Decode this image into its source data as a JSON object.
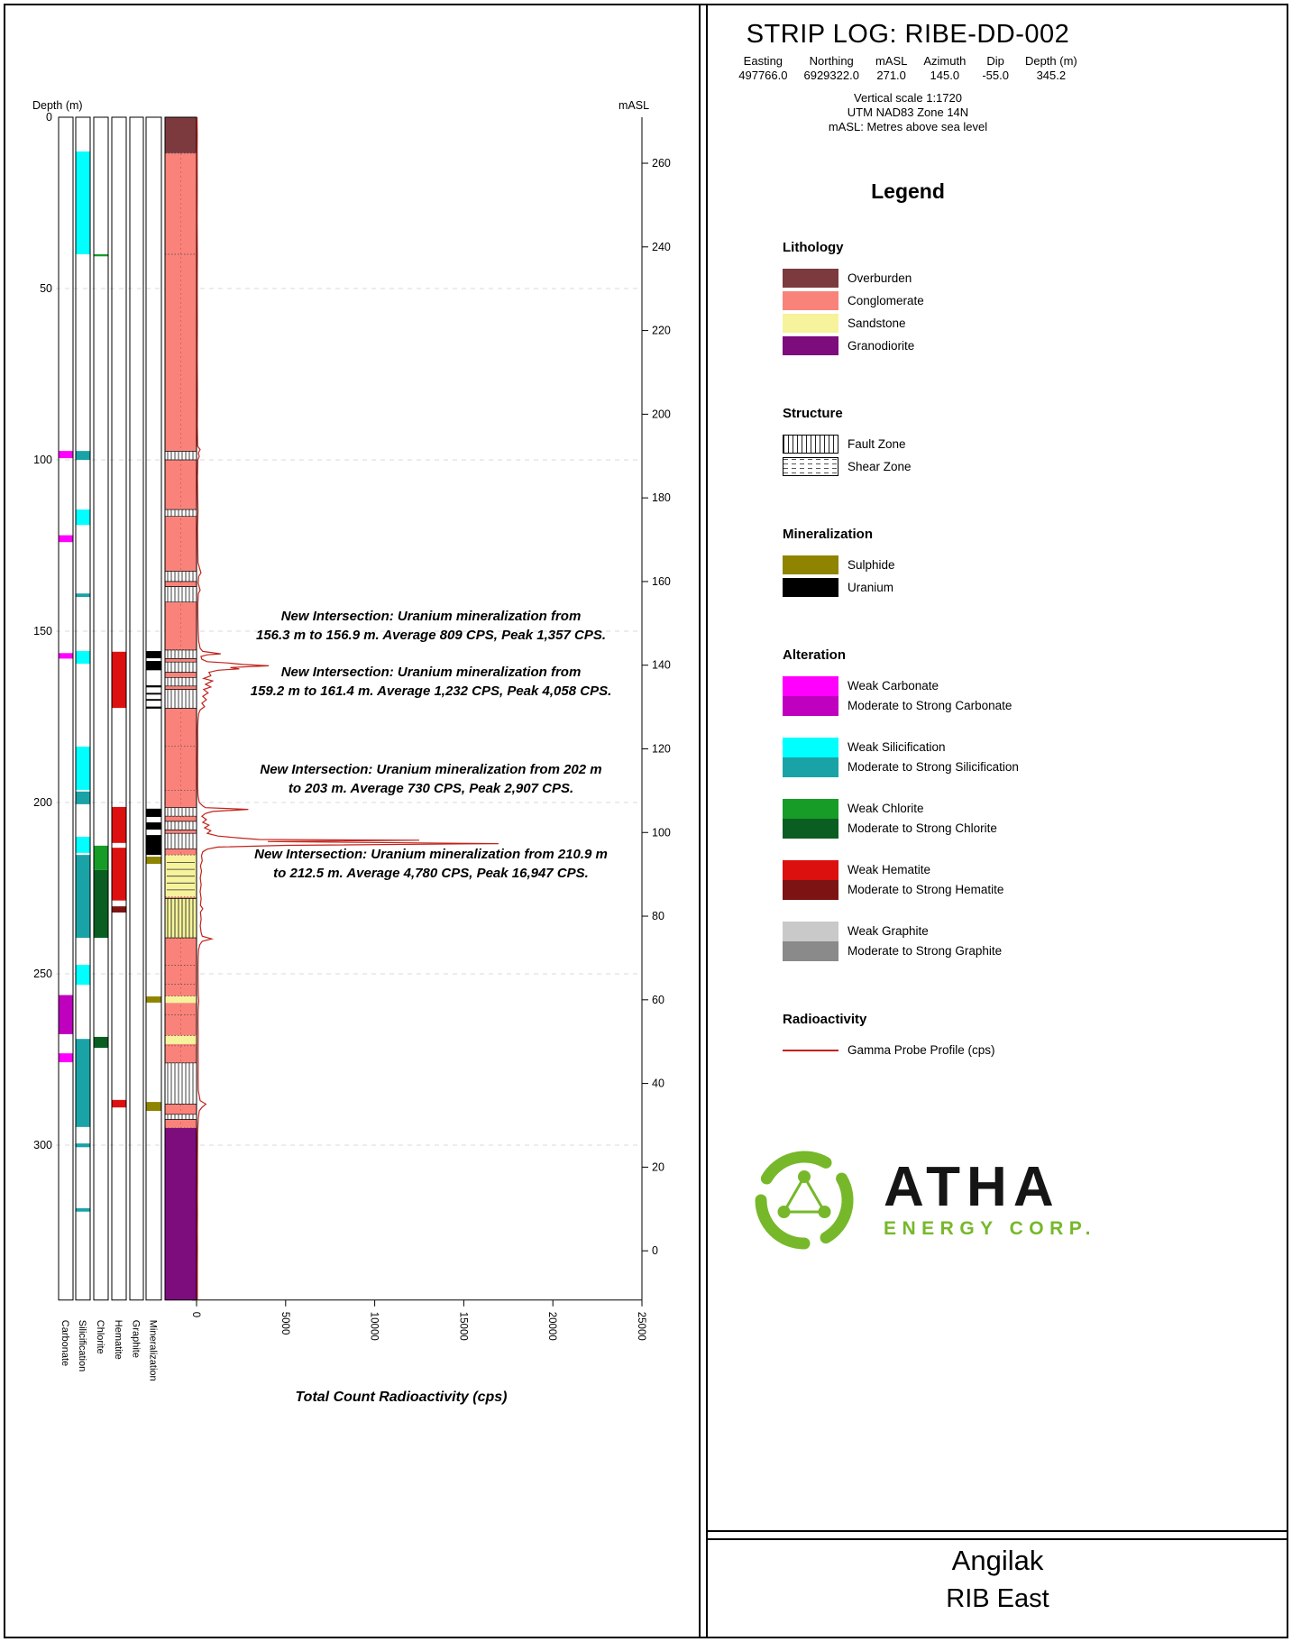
{
  "header": {
    "title": "STRIP LOG: RIBE-DD-002",
    "info_table": {
      "columns": [
        "Easting",
        "Northing",
        "mASL",
        "Azimuth",
        "Dip",
        "Depth (m)"
      ],
      "values": [
        "497766.0",
        "6929322.0",
        "271.0",
        "145.0",
        "-55.0",
        "345.2"
      ]
    },
    "scale_notes": [
      "Vertical scale 1:1720",
      "UTM NAD83 Zone 14N",
      "mASL: Metres above sea level"
    ]
  },
  "palette": {
    "overburden": "#7c3a3f",
    "conglomerate": "#f9837b",
    "sandstone": "#f6f39c",
    "granodiorite": "#7d0c7d",
    "sulphide": "#8f8400",
    "uranium": "#000000",
    "weak_carbonate": "#ff00ff",
    "strong_carbonate": "#bf00bf",
    "weak_silicification": "#00ffff",
    "strong_silicification": "#1aa3a6",
    "weak_chlorite": "#169c27",
    "strong_chlorite": "#0b5e21",
    "weak_hematite": "#dd1010",
    "strong_hematite": "#7e1313",
    "weak_graphite": "#c9c9c9",
    "strong_graphite": "#8a8a8a",
    "gamma_line": "#c2221a",
    "atha_green": "#76b82a"
  },
  "legend": {
    "title": "Legend",
    "sections": [
      {
        "heading": "Lithology",
        "type": "solid",
        "items": [
          {
            "label": "Overburden",
            "key": "overburden"
          },
          {
            "label": "Conglomerate",
            "key": "conglomerate"
          },
          {
            "label": "Sandstone",
            "key": "sandstone"
          },
          {
            "label": "Granodiorite",
            "key": "granodiorite"
          }
        ]
      },
      {
        "heading": "Structure",
        "type": "pattern",
        "items": [
          {
            "label": "Fault Zone",
            "pattern": "fault"
          },
          {
            "label": "Shear Zone",
            "pattern": "shear"
          }
        ]
      },
      {
        "heading": "Mineralization",
        "type": "solid",
        "items": [
          {
            "label": "Sulphide",
            "key": "sulphide"
          },
          {
            "label": "Uranium",
            "key": "uranium"
          }
        ]
      },
      {
        "heading": "Alteration",
        "type": "duo",
        "items": [
          {
            "weak_label": "Weak Carbonate",
            "strong_label": "Moderate to Strong Carbonate",
            "weak_key": "weak_carbonate",
            "strong_key": "strong_carbonate"
          },
          {
            "weak_label": "Weak Silicification",
            "strong_label": "Moderate to Strong Silicification",
            "weak_key": "weak_silicification",
            "strong_key": "strong_silicification"
          },
          {
            "weak_label": "Weak Chlorite",
            "strong_label": "Moderate to Strong Chlorite",
            "weak_key": "weak_chlorite",
            "strong_key": "strong_chlorite"
          },
          {
            "weak_label": "Weak Hematite",
            "strong_label": "Moderate to Strong Hematite",
            "weak_key": "weak_hematite",
            "strong_key": "strong_hematite"
          },
          {
            "weak_label": "Weak Graphite",
            "strong_label": "Moderate to Strong Graphite",
            "weak_key": "weak_graphite",
            "strong_key": "strong_graphite"
          }
        ]
      },
      {
        "heading": "Radioactivity",
        "type": "line",
        "items": [
          {
            "label": "Gamma Probe Profile (cps)",
            "key": "gamma_line"
          }
        ]
      }
    ]
  },
  "logo": {
    "name": "ATHA",
    "subtitle": "ENERGY CORP."
  },
  "footer": {
    "project": "Angilak",
    "area": "RIB East"
  },
  "chart_data": {
    "type": "strip-log",
    "axes": {
      "depth_label": "Depth (m)",
      "depth_range": [
        0,
        345.2
      ],
      "depth_ticks": [
        0,
        50,
        100,
        150,
        200,
        250,
        300
      ],
      "masl_label": "mASL",
      "masl_ticks": [
        260,
        240,
        220,
        200,
        180,
        160,
        140,
        120,
        100,
        80,
        60,
        40,
        20,
        0
      ],
      "collar_masl": 271.0,
      "dip_deg": -55.0,
      "cps_label": "Total Count Radioactivity (cps)",
      "cps_range": [
        0,
        25000
      ],
      "cps_ticks": [
        0,
        5000,
        10000,
        15000,
        20000,
        25000
      ]
    },
    "tracks": [
      {
        "name": "Carbonate",
        "intervals": [
          {
            "from": 97.4,
            "to": 99.5,
            "key": "weak_carbonate"
          },
          {
            "from": 122,
            "to": 124,
            "key": "weak_carbonate"
          },
          {
            "from": 156.4,
            "to": 158,
            "key": "weak_carbonate"
          },
          {
            "from": 256.2,
            "to": 267.6,
            "key": "strong_carbonate"
          },
          {
            "from": 273.2,
            "to": 275.8,
            "key": "weak_carbonate"
          }
        ]
      },
      {
        "name": "Silicification",
        "intervals": [
          {
            "from": 10,
            "to": 40,
            "key": "weak_silicification"
          },
          {
            "from": 97.4,
            "to": 100,
            "key": "strong_silicification"
          },
          {
            "from": 114.5,
            "to": 119,
            "key": "weak_silicification"
          },
          {
            "from": 139,
            "to": 140,
            "key": "strong_silicification"
          },
          {
            "from": 155.8,
            "to": 159.5,
            "key": "weak_silicification"
          },
          {
            "from": 183.7,
            "to": 196.3,
            "key": "weak_silicification"
          },
          {
            "from": 196.8,
            "to": 200.5,
            "key": "strong_silicification"
          },
          {
            "from": 210,
            "to": 214.7,
            "key": "weak_silicification"
          },
          {
            "from": 215.3,
            "to": 239.5,
            "key": "strong_silicification"
          },
          {
            "from": 247.4,
            "to": 253.2,
            "key": "weak_silicification"
          },
          {
            "from": 269,
            "to": 294.7,
            "key": "strong_silicification"
          },
          {
            "from": 299.5,
            "to": 300.6,
            "key": "strong_silicification"
          },
          {
            "from": 318.4,
            "to": 319.4,
            "key": "strong_silicification"
          }
        ]
      },
      {
        "name": "Chlorite",
        "intervals": [
          {
            "from": 40,
            "to": 40.6,
            "key": "weak_chlorite"
          },
          {
            "from": 212.6,
            "to": 219.7,
            "key": "weak_chlorite"
          },
          {
            "from": 219.7,
            "to": 239.5,
            "key": "strong_chlorite"
          },
          {
            "from": 268.4,
            "to": 271.6,
            "key": "strong_chlorite"
          }
        ]
      },
      {
        "name": "Hematite",
        "intervals": [
          {
            "from": 156,
            "to": 172.4,
            "key": "weak_hematite"
          },
          {
            "from": 201.3,
            "to": 211.8,
            "key": "weak_hematite"
          },
          {
            "from": 213.2,
            "to": 228.6,
            "key": "weak_hematite"
          },
          {
            "from": 230.3,
            "to": 232.1,
            "key": "strong_hematite"
          },
          {
            "from": 286.8,
            "to": 289,
            "key": "weak_hematite"
          }
        ]
      },
      {
        "name": "Graphite",
        "intervals": []
      },
      {
        "name": "Mineralization",
        "intervals": [
          {
            "from": 155.8,
            "to": 157.9,
            "key": "uranium"
          },
          {
            "from": 158.7,
            "to": 161.4,
            "key": "uranium"
          },
          {
            "from": 165.8,
            "to": 166.4,
            "key": "uranium"
          },
          {
            "from": 168,
            "to": 168.5,
            "key": "uranium"
          },
          {
            "from": 169.8,
            "to": 170.3,
            "key": "uranium"
          },
          {
            "from": 172,
            "to": 172.6,
            "key": "uranium"
          },
          {
            "from": 201.8,
            "to": 204.2,
            "key": "uranium"
          },
          {
            "from": 205.8,
            "to": 207.9,
            "key": "uranium"
          },
          {
            "from": 209.5,
            "to": 215.3,
            "key": "uranium"
          },
          {
            "from": 215.8,
            "to": 217.9,
            "key": "sulphide"
          },
          {
            "from": 256.6,
            "to": 258.4,
            "key": "sulphide"
          },
          {
            "from": 287.4,
            "to": 290,
            "key": "sulphide"
          }
        ]
      }
    ],
    "lithology": {
      "units": [
        {
          "from": 0,
          "to": 10.5,
          "key": "overburden",
          "label": "Overburden"
        },
        {
          "from": 10.5,
          "to": 295,
          "key": "conglomerate",
          "label": "Conglomerate"
        },
        {
          "from": 295,
          "to": 345.2,
          "key": "granodiorite",
          "label": "Granodiorite"
        }
      ],
      "sandstone_beds": [
        {
          "from": 215.3,
          "to": 227.6
        },
        {
          "from": 228,
          "to": 239.5
        },
        {
          "from": 256.5,
          "to": 258.5
        },
        {
          "from": 268,
          "to": 270.5
        }
      ],
      "fault_zones": [
        [
          97.5,
          100
        ],
        [
          114.5,
          116.5
        ],
        [
          132.5,
          135.5
        ],
        [
          137,
          141.5
        ],
        [
          155.5,
          158
        ],
        [
          159,
          162
        ],
        [
          163.5,
          166
        ],
        [
          167,
          172.5
        ],
        [
          201.5,
          204
        ],
        [
          205.5,
          208
        ],
        [
          209,
          213.5
        ],
        [
          228,
          239.5
        ],
        [
          276,
          288
        ],
        [
          291,
          292.5
        ]
      ],
      "boundaries": [
        10.5,
        40,
        97.5,
        100,
        114.5,
        116.5,
        132.5,
        141.5,
        155.5,
        183.5,
        196.5,
        204,
        215.3,
        227.6,
        239.5,
        247.5,
        253,
        256.5,
        262,
        268,
        271,
        276,
        288,
        295
      ],
      "bed_lines": [
        217.5,
        219.5,
        221.5,
        223.5,
        225.5
      ]
    },
    "annotations": [
      {
        "depth": 146.8,
        "lines": [
          "New Intersection: Uranium mineralization from",
          "156.3 m to 156.9 m. Average 809 CPS, Peak 1,357 CPS."
        ]
      },
      {
        "depth": 163.2,
        "lines": [
          "New Intersection: Uranium mineralization from",
          "159.2 m to 161.4 m. Average 1,232 CPS, Peak 4,058 CPS."
        ]
      },
      {
        "depth": 191.6,
        "lines": [
          "New Intersection: Uranium mineralization from 202 m",
          "to 203 m. Average 730 CPS, Peak 2,907 CPS."
        ]
      },
      {
        "depth": 216.3,
        "lines": [
          "New Intersection: Uranium mineralization from 210.9 m",
          "to 212.5 m. Average 4,780 CPS, Peak 16,947 CPS."
        ]
      }
    ],
    "gamma_profile": [
      [
        0,
        30
      ],
      [
        5,
        40
      ],
      [
        10,
        35
      ],
      [
        20,
        40
      ],
      [
        30,
        35
      ],
      [
        40,
        45
      ],
      [
        50,
        40
      ],
      [
        60,
        45
      ],
      [
        70,
        40
      ],
      [
        80,
        50
      ],
      [
        90,
        45
      ],
      [
        96,
        60
      ],
      [
        97,
        200
      ],
      [
        98,
        100
      ],
      [
        99,
        150
      ],
      [
        100,
        70
      ],
      [
        105,
        50
      ],
      [
        110,
        60
      ],
      [
        115,
        80
      ],
      [
        120,
        55
      ],
      [
        125,
        65
      ],
      [
        130,
        80
      ],
      [
        133,
        250
      ],
      [
        134,
        120
      ],
      [
        136,
        90
      ],
      [
        138,
        200
      ],
      [
        139,
        100
      ],
      [
        142,
        70
      ],
      [
        146,
        75
      ],
      [
        150,
        90
      ],
      [
        153,
        120
      ],
      [
        155,
        200
      ],
      [
        155.9,
        350
      ],
      [
        156.3,
        900
      ],
      [
        156.6,
        1357
      ],
      [
        156.9,
        600
      ],
      [
        157.4,
        250
      ],
      [
        158.2,
        300
      ],
      [
        158.9,
        600
      ],
      [
        159.3,
        1800
      ],
      [
        159.7,
        2600
      ],
      [
        160.1,
        4058
      ],
      [
        160.6,
        1900
      ],
      [
        161,
        2400
      ],
      [
        161.4,
        1200
      ],
      [
        162,
        700
      ],
      [
        163,
        800
      ],
      [
        163.8,
        400
      ],
      [
        164.5,
        900
      ],
      [
        165.5,
        500
      ],
      [
        166.3,
        800
      ],
      [
        167,
        400
      ],
      [
        168,
        650
      ],
      [
        169,
        350
      ],
      [
        170,
        550
      ],
      [
        171,
        300
      ],
      [
        172,
        450
      ],
      [
        173,
        200
      ],
      [
        174,
        120
      ],
      [
        176,
        80
      ],
      [
        179,
        60
      ],
      [
        183,
        70
      ],
      [
        187,
        60
      ],
      [
        191,
        65
      ],
      [
        195,
        60
      ],
      [
        198,
        80
      ],
      [
        200,
        150
      ],
      [
        201,
        350
      ],
      [
        201.5,
        500
      ],
      [
        202,
        2907
      ],
      [
        202.6,
        900
      ],
      [
        203.2,
        500
      ],
      [
        204,
        300
      ],
      [
        205,
        550
      ],
      [
        205.8,
        350
      ],
      [
        206.6,
        700
      ],
      [
        207.4,
        450
      ],
      [
        208.2,
        800
      ],
      [
        209,
        600
      ],
      [
        209.8,
        1200
      ],
      [
        210.4,
        2500
      ],
      [
        210.8,
        3500
      ],
      [
        211,
        12500
      ],
      [
        211.4,
        4000
      ],
      [
        212,
        16947
      ],
      [
        212.5,
        5000
      ],
      [
        213,
        1200
      ],
      [
        213.6,
        600
      ],
      [
        214.4,
        350
      ],
      [
        215.5,
        280
      ],
      [
        217,
        320
      ],
      [
        218.5,
        220
      ],
      [
        220,
        280
      ],
      [
        222,
        210
      ],
      [
        224,
        260
      ],
      [
        226,
        200
      ],
      [
        228,
        260
      ],
      [
        230,
        220
      ],
      [
        231,
        350
      ],
      [
        232,
        220
      ],
      [
        234,
        260
      ],
      [
        236,
        210
      ],
      [
        238,
        260
      ],
      [
        239,
        320
      ],
      [
        239.8,
        850
      ],
      [
        240.5,
        320
      ],
      [
        241.5,
        180
      ],
      [
        243,
        110
      ],
      [
        245,
        90
      ],
      [
        248,
        80
      ],
      [
        252,
        85
      ],
      [
        256,
        95
      ],
      [
        258,
        120
      ],
      [
        260,
        90
      ],
      [
        264,
        80
      ],
      [
        268,
        90
      ],
      [
        272,
        85
      ],
      [
        276,
        90
      ],
      [
        280,
        85
      ],
      [
        284,
        95
      ],
      [
        287,
        200
      ],
      [
        288,
        520
      ],
      [
        289,
        300
      ],
      [
        290,
        150
      ],
      [
        292,
        100
      ],
      [
        294,
        80
      ],
      [
        296,
        60
      ],
      [
        300,
        55
      ],
      [
        305,
        50
      ],
      [
        310,
        52
      ],
      [
        315,
        48
      ],
      [
        320,
        52
      ],
      [
        325,
        48
      ],
      [
        330,
        50
      ],
      [
        335,
        46
      ],
      [
        340,
        48
      ],
      [
        345,
        45
      ]
    ]
  }
}
